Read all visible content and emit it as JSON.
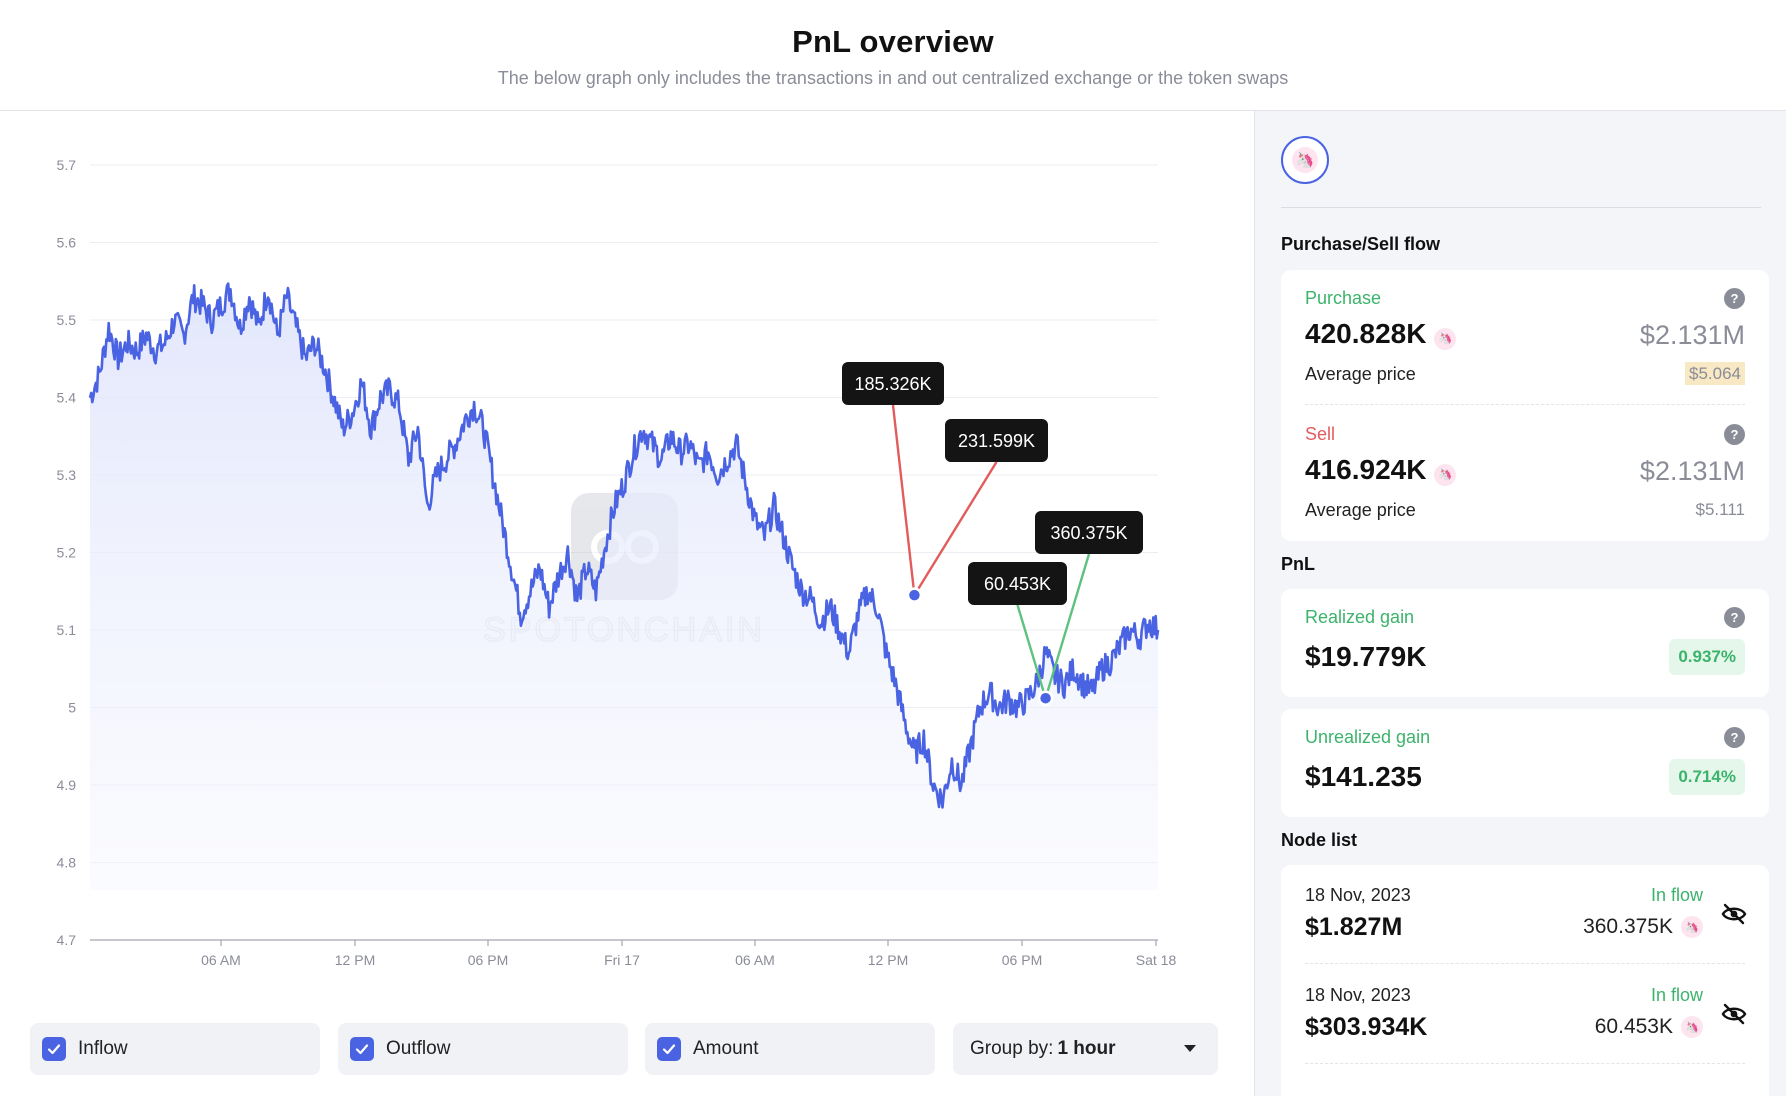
{
  "header": {
    "title": "PnL overview",
    "subtitle": "The below graph only includes the transactions in and out centralized exchange or the token swaps"
  },
  "chart_data": {
    "type": "line",
    "yticks": [
      "5.7",
      "5.6",
      "5.5",
      "5.4",
      "5.3",
      "5.2",
      "5.1",
      "5",
      "4.9",
      "4.8",
      "4.7"
    ],
    "ylim": [
      4.7,
      5.7
    ],
    "xticks": [
      "06 AM",
      "12 PM",
      "06 PM",
      "Fri 17",
      "06 AM",
      "12 PM",
      "06 PM",
      "Sat 18"
    ],
    "grid": true,
    "line_color": "#4a63e3",
    "anchors": [
      [
        0,
        5.4
      ],
      [
        2,
        5.43
      ],
      [
        4,
        5.49
      ],
      [
        6,
        5.45
      ],
      [
        8,
        5.47
      ],
      [
        10,
        5.46
      ],
      [
        12,
        5.48
      ],
      [
        14,
        5.46
      ],
      [
        16,
        5.47
      ],
      [
        18,
        5.5
      ],
      [
        20,
        5.48
      ],
      [
        22,
        5.53
      ],
      [
        24,
        5.52
      ],
      [
        26,
        5.5
      ],
      [
        28,
        5.52
      ],
      [
        30,
        5.54
      ],
      [
        32,
        5.49
      ],
      [
        34,
        5.53
      ],
      [
        36,
        5.49
      ],
      [
        38,
        5.54
      ],
      [
        40,
        5.48
      ],
      [
        42,
        5.53
      ],
      [
        44,
        5.49
      ],
      [
        46,
        5.45
      ],
      [
        48,
        5.47
      ],
      [
        50,
        5.44
      ],
      [
        52,
        5.4
      ],
      [
        54,
        5.36
      ],
      [
        56,
        5.38
      ],
      [
        58,
        5.42
      ],
      [
        60,
        5.36
      ],
      [
        62,
        5.4
      ],
      [
        64,
        5.41
      ],
      [
        66,
        5.39
      ],
      [
        68,
        5.32
      ],
      [
        70,
        5.36
      ],
      [
        72,
        5.26
      ],
      [
        74,
        5.3
      ],
      [
        76,
        5.32
      ],
      [
        78,
        5.34
      ],
      [
        80,
        5.37
      ],
      [
        82,
        5.39
      ],
      [
        84,
        5.36
      ],
      [
        86,
        5.3
      ],
      [
        88,
        5.24
      ],
      [
        90,
        5.18
      ],
      [
        92,
        5.12
      ],
      [
        94,
        5.15
      ],
      [
        96,
        5.18
      ],
      [
        98,
        5.13
      ],
      [
        100,
        5.17
      ],
      [
        102,
        5.2
      ],
      [
        104,
        5.14
      ],
      [
        106,
        5.18
      ],
      [
        108,
        5.15
      ],
      [
        110,
        5.21
      ],
      [
        112,
        5.26
      ],
      [
        114,
        5.29
      ],
      [
        116,
        5.33
      ],
      [
        118,
        5.36
      ],
      [
        120,
        5.34
      ],
      [
        122,
        5.32
      ],
      [
        124,
        5.35
      ],
      [
        126,
        5.33
      ],
      [
        128,
        5.34
      ],
      [
        130,
        5.31
      ],
      [
        132,
        5.33
      ],
      [
        134,
        5.3
      ],
      [
        136,
        5.32
      ],
      [
        138,
        5.34
      ],
      [
        140,
        5.29
      ],
      [
        142,
        5.24
      ],
      [
        144,
        5.22
      ],
      [
        146,
        5.26
      ],
      [
        148,
        5.22
      ],
      [
        150,
        5.18
      ],
      [
        152,
        5.15
      ],
      [
        154,
        5.14
      ],
      [
        156,
        5.11
      ],
      [
        158,
        5.13
      ],
      [
        160,
        5.1
      ],
      [
        162,
        5.07
      ],
      [
        164,
        5.12
      ],
      [
        166,
        5.15
      ],
      [
        168,
        5.13
      ],
      [
        170,
        5.07
      ],
      [
        172,
        5.03
      ],
      [
        174,
        4.98
      ],
      [
        176,
        4.94
      ],
      [
        178,
        4.96
      ],
      [
        180,
        4.9
      ],
      [
        182,
        4.88
      ],
      [
        184,
        4.93
      ],
      [
        186,
        4.9
      ],
      [
        188,
        4.95
      ],
      [
        190,
        5.0
      ],
      [
        192,
        5.02
      ],
      [
        194,
        5.0
      ],
      [
        196,
        5.01
      ],
      [
        198,
        5.0
      ],
      [
        200,
        5.01
      ],
      [
        202,
        5.03
      ],
      [
        204,
        5.07
      ],
      [
        206,
        5.04
      ],
      [
        208,
        5.03
      ],
      [
        210,
        5.05
      ],
      [
        212,
        5.03
      ],
      [
        214,
        5.02
      ],
      [
        216,
        5.05
      ],
      [
        218,
        5.06
      ],
      [
        220,
        5.08
      ],
      [
        222,
        5.1
      ],
      [
        224,
        5.09
      ],
      [
        226,
        5.11
      ],
      [
        228,
        5.1
      ]
    ],
    "xmax": 228,
    "annotations": [
      {
        "label": "185.326K",
        "x": 176,
        "y": 5.145,
        "color": "#e25c5c"
      },
      {
        "label": "231.599K",
        "x": 176,
        "y": 5.145,
        "color": "#e25c5c"
      },
      {
        "label": "60.453K",
        "x": 204,
        "y": 5.012,
        "color": "#5ec27e"
      },
      {
        "label": "360.375K",
        "x": 204,
        "y": 5.012,
        "color": "#5ec27e"
      }
    ],
    "watermark": "SPOTONCHAIN"
  },
  "controls": {
    "inflow": "Inflow",
    "outflow": "Outflow",
    "amount": "Amount",
    "group_by_label": "Group by:",
    "group_by_value": "1 hour"
  },
  "side": {
    "flow_title": "Purchase/Sell flow",
    "purchase": {
      "label": "Purchase",
      "amount": "420.828K",
      "usd": "$2.131M",
      "avg_label": "Average price",
      "avg_value": "$5.064"
    },
    "sell": {
      "label": "Sell",
      "amount": "416.924K",
      "usd": "$2.131M",
      "avg_label": "Average price",
      "avg_value": "$5.111"
    },
    "pnl_title": "PnL",
    "realized": {
      "label": "Realized gain",
      "value": "$19.779K",
      "pct": "0.937%"
    },
    "unrealized": {
      "label": "Unrealized gain",
      "value": "$141.235",
      "pct": "0.714%"
    },
    "node_title": "Node list",
    "nodes": [
      {
        "date": "18 Nov, 2023",
        "flow": "In flow",
        "usd": "$1.827M",
        "amount": "360.375K"
      },
      {
        "date": "18 Nov, 2023",
        "flow": "In flow",
        "usd": "$303.934K",
        "amount": "60.453K"
      }
    ]
  }
}
